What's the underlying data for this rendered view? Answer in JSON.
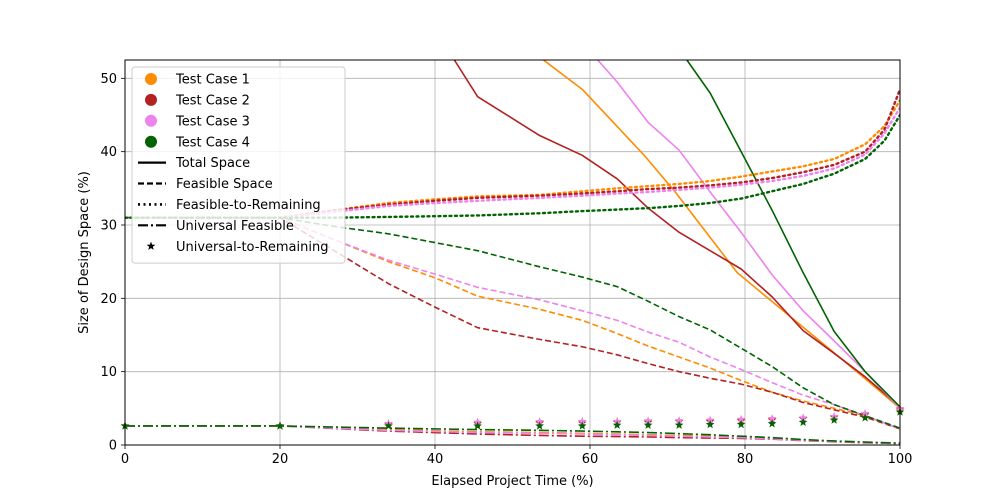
{
  "chart_data": {
    "type": "line",
    "title": "",
    "xlabel": "Elapsed Project Time (%)",
    "ylabel": "Size of Design Space (%)",
    "xlim": [
      0,
      100
    ],
    "ylim": [
      0,
      52.5
    ],
    "xticks": [
      0,
      20,
      40,
      60,
      80,
      100
    ],
    "yticks": [
      0,
      10,
      20,
      30,
      40,
      50
    ],
    "grid": true,
    "legend_position": "top-left",
    "legend": {
      "cases": [
        {
          "name": "Test Case 1",
          "color": "#ff8c00"
        },
        {
          "name": "Test Case 2",
          "color": "#b22222"
        },
        {
          "name": "Test Case 3",
          "color": "#ee82ee"
        },
        {
          "name": "Test Case 4",
          "color": "#006400"
        }
      ],
      "styles": [
        {
          "name": "Total Space",
          "style": "solid"
        },
        {
          "name": "Feasible Space",
          "style": "dashed"
        },
        {
          "name": "Feasible-to-Remaining",
          "style": "dotted"
        },
        {
          "name": "Universal Feasible",
          "style": "dashdot"
        },
        {
          "name": "Universal-to-Remaining",
          "style": "star"
        }
      ]
    },
    "series": [
      {
        "case": "Test Case 1",
        "metric": "Total Space",
        "color": "#ff8c00",
        "style": "solid",
        "x": [
          54,
          59,
          63,
          67,
          71,
          75,
          79,
          83,
          87,
          91,
          95,
          100
        ],
        "y": [
          52.5,
          48.5,
          44,
          39.5,
          34.5,
          29,
          23.5,
          20,
          16.5,
          13,
          9.5,
          5
        ]
      },
      {
        "case": "Test Case 2",
        "metric": "Total Space",
        "color": "#b22222",
        "style": "solid",
        "x": [
          42.5,
          45.5,
          53.5,
          59,
          63.5,
          67.5,
          71.5,
          75.5,
          79.5,
          83.5,
          87.5,
          91.5,
          95.5,
          100
        ],
        "y": [
          52.5,
          47.5,
          42.2,
          39.5,
          36.3,
          32.3,
          29,
          26.5,
          24,
          20.2,
          15.6,
          12.5,
          9.3,
          5.2
        ]
      },
      {
        "case": "Test Case 3",
        "metric": "Total Space",
        "color": "#ee82ee",
        "style": "solid",
        "x": [
          61,
          63.5,
          67.5,
          71.5,
          75.5,
          79.5,
          83.5,
          87.5,
          91.5,
          95.5,
          100
        ],
        "y": [
          52.5,
          49.5,
          44,
          40.2,
          34.5,
          29,
          23.2,
          18.3,
          14.2,
          10,
          5
        ]
      },
      {
        "case": "Test Case 4",
        "metric": "Total Space",
        "color": "#006400",
        "style": "solid",
        "x": [
          72.5,
          75.5,
          79.5,
          83.5,
          87.5,
          91.5,
          95.5,
          100
        ],
        "y": [
          52.5,
          48,
          40,
          32,
          23.5,
          15.5,
          10,
          5.2
        ]
      },
      {
        "case": "Test Case 1",
        "metric": "Feasible Space",
        "color": "#ff8c00",
        "style": "dashed",
        "x": [
          0,
          20,
          27,
          34,
          40,
          45.5,
          53.5,
          59,
          63.5,
          67.5,
          71.5,
          75.5,
          79.5,
          83.5,
          87.5,
          91.5,
          95.5,
          100
        ],
        "y": [
          31,
          31,
          28,
          25,
          22.8,
          20.3,
          18.5,
          17,
          15.2,
          13.5,
          12,
          10.5,
          8.8,
          7.2,
          6,
          5,
          4,
          2.2
        ]
      },
      {
        "case": "Test Case 2",
        "metric": "Feasible Space",
        "color": "#b22222",
        "style": "dashed",
        "x": [
          0,
          20,
          27,
          34,
          40,
          45.5,
          53.5,
          59,
          63.5,
          67.5,
          71.5,
          75.5,
          79.5,
          83.5,
          87.5,
          91.5,
          95.5,
          100
        ],
        "y": [
          31,
          31,
          26.5,
          22,
          18.8,
          16,
          14.4,
          13.4,
          12.3,
          11.1,
          10,
          9.1,
          8.3,
          7.2,
          5.8,
          4.8,
          3.8,
          2.2
        ]
      },
      {
        "case": "Test Case 3",
        "metric": "Feasible Space",
        "color": "#ee82ee",
        "style": "dashed",
        "x": [
          0,
          20,
          27,
          34,
          40,
          45.5,
          53.5,
          59,
          63.5,
          67.5,
          71.5,
          75.5,
          79.5,
          83.5,
          87.5,
          91.5,
          95.5,
          100
        ],
        "y": [
          31,
          31,
          28,
          25.2,
          23.3,
          21.5,
          19.8,
          18.3,
          17,
          15.4,
          14,
          12,
          10.3,
          8.5,
          6.8,
          5.5,
          4,
          2.2
        ]
      },
      {
        "case": "Test Case 4",
        "metric": "Feasible Space",
        "color": "#006400",
        "style": "dashed",
        "x": [
          0,
          20,
          27,
          34,
          40,
          45.5,
          53.5,
          59,
          63.5,
          67.5,
          71.5,
          75.5,
          79.5,
          83.5,
          87.5,
          91.5,
          95.5,
          100
        ],
        "y": [
          31,
          31,
          29.8,
          28.8,
          27.6,
          26.5,
          24.3,
          22.9,
          21.6,
          19.6,
          17.5,
          15.7,
          13.2,
          10.7,
          7.8,
          5.5,
          4,
          2.3
        ]
      },
      {
        "case": "Test Case 1",
        "metric": "Feasible-to-Remaining",
        "color": "#ff8c00",
        "style": "dotted",
        "x": [
          0,
          20,
          27,
          34,
          40,
          45.5,
          53.5,
          59,
          63.5,
          67.5,
          71.5,
          75.5,
          79.5,
          83.5,
          87.5,
          91.5,
          95.5,
          98,
          100
        ],
        "y": [
          31,
          31,
          32,
          33,
          33.5,
          33.9,
          34.1,
          34.6,
          35,
          35.3,
          35.6,
          36,
          36.6,
          37.3,
          38,
          39,
          41,
          43.5,
          47
        ]
      },
      {
        "case": "Test Case 2",
        "metric": "Feasible-to-Remaining",
        "color": "#b22222",
        "style": "dotted",
        "x": [
          0,
          20,
          27,
          34,
          40,
          45.5,
          53.5,
          59,
          63.5,
          67.5,
          71.5,
          75.5,
          79.5,
          83.5,
          87.5,
          91.5,
          95.5,
          98,
          100
        ],
        "y": [
          31,
          31,
          32,
          32.8,
          33.3,
          33.7,
          34,
          34.3,
          34.6,
          34.9,
          35.1,
          35.4,
          35.8,
          36.4,
          37.2,
          38.2,
          40,
          43,
          48.5
        ]
      },
      {
        "case": "Test Case 3",
        "metric": "Feasible-to-Remaining",
        "color": "#ee82ee",
        "style": "dotted",
        "x": [
          0,
          20,
          27,
          34,
          40,
          45.5,
          53.5,
          59,
          63.5,
          67.5,
          71.5,
          75.5,
          79.5,
          83.5,
          87.5,
          91.5,
          95.5,
          98,
          100
        ],
        "y": [
          31,
          31,
          31.8,
          32.6,
          33,
          33.3,
          33.7,
          34,
          34.3,
          34.5,
          34.8,
          35.1,
          35.5,
          36,
          36.7,
          37.7,
          39.6,
          42.5,
          46
        ]
      },
      {
        "case": "Test Case 4",
        "metric": "Feasible-to-Remaining",
        "color": "#006400",
        "style": "dotted",
        "x": [
          0,
          20,
          27,
          34,
          40,
          45.5,
          53.5,
          59,
          63.5,
          67.5,
          71.5,
          75.5,
          79.5,
          83.5,
          87.5,
          91.5,
          95.5,
          98,
          100
        ],
        "y": [
          31,
          31,
          31,
          31.1,
          31.2,
          31.3,
          31.6,
          31.9,
          32.1,
          32.3,
          32.6,
          33,
          33.6,
          34.6,
          35.6,
          37,
          39,
          41.5,
          45
        ]
      },
      {
        "case": "Test Case 1",
        "metric": "Universal Feasible",
        "color": "#ff8c00",
        "style": "dashdot",
        "x": [
          0,
          20,
          34,
          45.5,
          53.5,
          59,
          63.5,
          67.5,
          71.5,
          75.5,
          79.5,
          83.5,
          87.5,
          91.5,
          95.5,
          100
        ],
        "y": [
          2.6,
          2.6,
          2.1,
          1.8,
          1.7,
          1.6,
          1.5,
          1.4,
          1.3,
          1.2,
          1.1,
          0.9,
          0.7,
          0.5,
          0.35,
          0.2
        ]
      },
      {
        "case": "Test Case 2",
        "metric": "Universal Feasible",
        "color": "#b22222",
        "style": "dashdot",
        "x": [
          0,
          20,
          34,
          45.5,
          53.5,
          59,
          63.5,
          67.5,
          71.5,
          75.5,
          79.5,
          83.5,
          87.5,
          91.5,
          95.5,
          100
        ],
        "y": [
          2.6,
          2.6,
          1.9,
          1.5,
          1.3,
          1.2,
          1.15,
          1.1,
          1.0,
          0.95,
          0.9,
          0.8,
          0.6,
          0.45,
          0.3,
          0.2
        ]
      },
      {
        "case": "Test Case 3",
        "metric": "Universal Feasible",
        "color": "#ee82ee",
        "style": "dashdot",
        "x": [
          0,
          20,
          34,
          45.5,
          53.5,
          59,
          63.5,
          67.5,
          71.5,
          75.5,
          79.5,
          83.5,
          87.5,
          91.5,
          95.5,
          100
        ],
        "y": [
          2.6,
          2.6,
          2.0,
          1.7,
          1.6,
          1.5,
          1.4,
          1.3,
          1.2,
          1.1,
          1.0,
          0.85,
          0.65,
          0.5,
          0.35,
          0.2
        ]
      },
      {
        "case": "Test Case 4",
        "metric": "Universal Feasible",
        "color": "#006400",
        "style": "dashdot",
        "x": [
          0,
          20,
          34,
          45.5,
          53.5,
          59,
          63.5,
          67.5,
          71.5,
          75.5,
          79.5,
          83.5,
          87.5,
          91.5,
          95.5,
          100
        ],
        "y": [
          2.6,
          2.6,
          2.3,
          2.1,
          2.0,
          1.9,
          1.8,
          1.7,
          1.55,
          1.4,
          1.2,
          1.0,
          0.75,
          0.55,
          0.4,
          0.25
        ]
      },
      {
        "case": "Test Case 1",
        "metric": "Universal-to-Remaining",
        "color": "#ff8c00",
        "style": "star",
        "x": [
          0,
          20,
          34,
          45.5,
          53.5,
          59,
          63.5,
          67.5,
          71.5,
          75.5,
          79.5,
          83.5,
          87.5,
          91.5,
          95.5,
          100
        ],
        "y": [
          2.6,
          2.6,
          2.9,
          3.1,
          3.1,
          3.2,
          3.2,
          3.2,
          3.3,
          3.3,
          3.4,
          3.5,
          3.6,
          3.8,
          4.1,
          4.7
        ]
      },
      {
        "case": "Test Case 2",
        "metric": "Universal-to-Remaining",
        "color": "#b22222",
        "style": "star",
        "x": [
          0,
          20,
          34,
          45.5,
          53.5,
          59,
          63.5,
          67.5,
          71.5,
          75.5,
          79.5,
          83.5,
          87.5,
          91.5,
          95.5,
          100
        ],
        "y": [
          2.6,
          2.6,
          2.8,
          2.9,
          3.0,
          3.0,
          3.1,
          3.1,
          3.2,
          3.2,
          3.3,
          3.4,
          3.6,
          3.8,
          4.2,
          4.9
        ]
      },
      {
        "case": "Test Case 3",
        "metric": "Universal-to-Remaining",
        "color": "#ee82ee",
        "style": "star",
        "x": [
          0,
          20,
          34,
          45.5,
          53.5,
          59,
          63.5,
          67.5,
          71.5,
          75.5,
          79.5,
          83.5,
          87.5,
          91.5,
          95.5,
          100
        ],
        "y": [
          2.6,
          2.6,
          2.9,
          3.1,
          3.2,
          3.2,
          3.2,
          3.3,
          3.3,
          3.4,
          3.5,
          3.6,
          3.7,
          3.9,
          4.3,
          4.8
        ]
      },
      {
        "case": "Test Case 4",
        "metric": "Universal-to-Remaining",
        "color": "#006400",
        "style": "star",
        "x": [
          0,
          20,
          34,
          45.5,
          53.5,
          59,
          63.5,
          67.5,
          71.5,
          75.5,
          79.5,
          83.5,
          87.5,
          91.5,
          95.5,
          100
        ],
        "y": [
          2.6,
          2.6,
          2.6,
          2.6,
          2.6,
          2.6,
          2.7,
          2.7,
          2.7,
          2.8,
          2.8,
          2.9,
          3.1,
          3.4,
          3.7,
          4.5
        ]
      }
    ]
  }
}
